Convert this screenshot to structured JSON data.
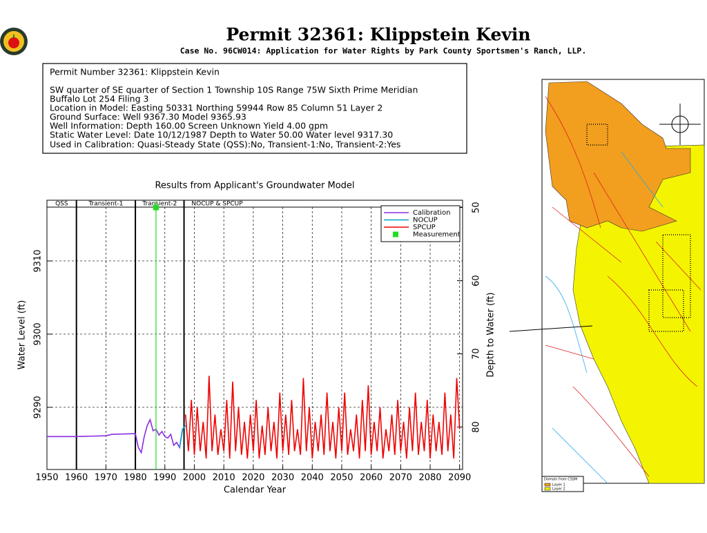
{
  "header": {
    "title": "Permit 32361:  Klippstein Kevin",
    "subtitle": "Case No. 96CW014: Application for Water Rights by Park County Sportsmen's Ranch, LLP."
  },
  "info": {
    "lines": [
      "Permit Number 32361: Klippstein Kevin",
      "SW quarter of SE quarter of Section 1 Township 10S Range 75W Sixth Prime Meridian",
      "Buffalo Lot 254 Filing 3",
      "Location in Model: Easting 50331 Northing  59944 Row   85 Column 51 Layer 2",
      "Ground Surface: Well  9367.30 Model  9365.93",
      "Well Information: Depth   160.00 Screen Unknown Yield       4.00 gpm",
      "Static Water Level: Date 10/12/1987 Depth to Water     50.00 Water level  9317.30",
      "Used in Calibration: Quasi-Steady State (QSS):No, Transient-1:No, Transient-2:Yes"
    ]
  },
  "map": {
    "legend": [
      "Domain from CSSM",
      "Layer 1",
      "Layer 2"
    ]
  },
  "chart_data": {
    "type": "line",
    "title": "Results from Applicant's Groundwater Model",
    "xlabel": "Calendar Year",
    "ylabel": "Water Level (ft)",
    "y2label": "Depth to Water (ft)",
    "xlim": [
      1950,
      2091
    ],
    "xticks": [
      1950,
      1960,
      1970,
      1980,
      1990,
      2000,
      2010,
      2020,
      2030,
      2040,
      2050,
      2060,
      2070,
      2080,
      2090
    ],
    "ylim": [
      9281.5,
      9318.3
    ],
    "yticks": [
      9290,
      9300,
      9310
    ],
    "y2lim": [
      49,
      85.8
    ],
    "y2ticks": [
      50,
      60,
      70,
      80
    ],
    "y2_inverted": true,
    "grid": true,
    "legend": "upper right",
    "periods": [
      {
        "label": "QSS",
        "start": 1950,
        "end": 1960
      },
      {
        "label": "Transient-1",
        "start": 1960,
        "end": 1980
      },
      {
        "label": "Transient-2",
        "start": 1980,
        "end": 1996.5
      },
      {
        "label": "NOCUP & SPCUP",
        "start": 1996.5,
        "end": 2091
      }
    ],
    "series": [
      {
        "name": "Calibration",
        "color": "#8a2be2",
        "x": [
          1950,
          1960,
          1970,
          1972,
          1980,
          1981,
          1982,
          1983,
          1984,
          1985,
          1986,
          1987,
          1988,
          1989,
          1990,
          1991,
          1992,
          1993,
          1994,
          1995,
          1996,
          1997
        ],
        "values": [
          9286.0,
          9286.0,
          9286.1,
          9286.3,
          9286.4,
          9284.5,
          9283.8,
          9286,
          9287.5,
          9288.3,
          9286.8,
          9287,
          9286.2,
          9286.7,
          9286.0,
          9285.8,
          9286.3,
          9284.8,
          9285.2,
          9284.5,
          9287,
          9287.5
        ]
      },
      {
        "name": "NOCUP",
        "color": "#00a0c8",
        "x": [
          1995,
          1996,
          1997
        ],
        "values": [
          9284.5,
          9287,
          9287.5
        ]
      },
      {
        "name": "SPCUP",
        "color": "#ee0000",
        "x": [
          1997,
          1998,
          1999,
          2000,
          2001,
          2002,
          2003,
          2004,
          2005,
          2006,
          2007,
          2008,
          2009,
          2010,
          2011,
          2012,
          2013,
          2014,
          2015,
          2016,
          2017,
          2018,
          2019,
          2020,
          2021,
          2022,
          2023,
          2024,
          2025,
          2026,
          2027,
          2028,
          2029,
          2030,
          2031,
          2032,
          2033,
          2034,
          2035,
          2036,
          2037,
          2038,
          2039,
          2040,
          2041,
          2042,
          2043,
          2044,
          2045,
          2046,
          2047,
          2048,
          2049,
          2050,
          2051,
          2052,
          2053,
          2054,
          2055,
          2056,
          2057,
          2058,
          2059,
          2060,
          2061,
          2062,
          2063,
          2064,
          2065,
          2066,
          2067,
          2068,
          2069,
          2070,
          2071,
          2072,
          2073,
          2074,
          2075,
          2076,
          2077,
          2078,
          2079,
          2080,
          2081,
          2082,
          2083,
          2084,
          2085,
          2086,
          2087,
          2088,
          2089,
          2090
        ],
        "values": [
          9289,
          9284,
          9291,
          9283.5,
          9290,
          9284,
          9288,
          9283,
          9294.3,
          9284,
          9289,
          9283.5,
          9287,
          9284,
          9291,
          9283,
          9293.5,
          9284,
          9290,
          9283.5,
          9288,
          9283,
          9289,
          9284,
          9291,
          9283,
          9287.5,
          9283.5,
          9290,
          9284,
          9288,
          9283,
          9292,
          9284,
          9289,
          9283.5,
          9291,
          9284,
          9287,
          9283.5,
          9294,
          9284,
          9290,
          9283,
          9288,
          9284,
          9289,
          9283.5,
          9292,
          9284,
          9288,
          9283,
          9290,
          9284,
          9292,
          9283.5,
          9287,
          9284,
          9289,
          9283,
          9291,
          9284,
          9293,
          9283.5,
          9288,
          9284,
          9290,
          9283,
          9287,
          9284,
          9289,
          9283.5,
          9291,
          9284,
          9288,
          9283,
          9290,
          9284,
          9292,
          9283.5,
          9288,
          9284,
          9291,
          9283,
          9289,
          9284,
          9288,
          9283.5,
          9292,
          9284,
          9289,
          9283,
          9294,
          9287
        ]
      },
      {
        "name": "Measurement",
        "color": "#22dd22",
        "x": [
          1987
        ],
        "values": [
          9317.3
        ],
        "marker": "star"
      }
    ]
  }
}
